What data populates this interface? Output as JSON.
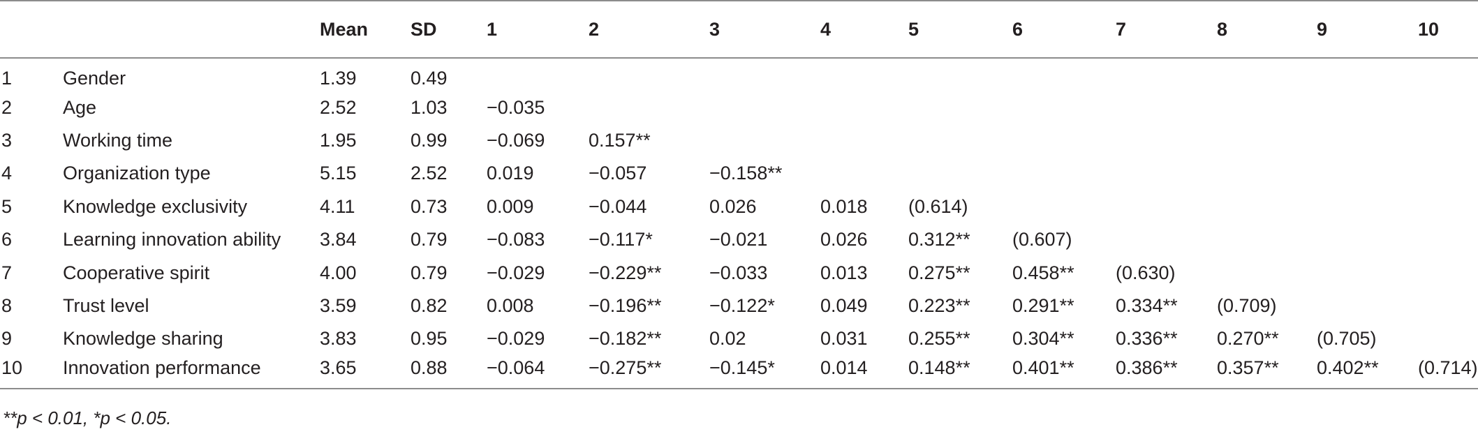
{
  "table": {
    "headers": [
      "",
      "",
      "Mean",
      "SD",
      "1",
      "2",
      "3",
      "4",
      "5",
      "6",
      "7",
      "8",
      "9",
      "10"
    ],
    "rows": [
      [
        "1",
        "Gender",
        "1.39",
        "0.49",
        "",
        "",
        "",
        "",
        "",
        "",
        "",
        "",
        "",
        ""
      ],
      [
        "2",
        "Age",
        "2.52",
        "1.03",
        "−0.035",
        "",
        "",
        "",
        "",
        "",
        "",
        "",
        "",
        ""
      ],
      [
        "3",
        "Working time",
        "1.95",
        "0.99",
        "−0.069",
        "0.157**",
        "",
        "",
        "",
        "",
        "",
        "",
        "",
        ""
      ],
      [
        "4",
        "Organization type",
        "5.15",
        "2.52",
        "0.019",
        "−0.057",
        "−0.158**",
        "",
        "",
        "",
        "",
        "",
        "",
        ""
      ],
      [
        "5",
        "Knowledge exclusivity",
        "4.11",
        "0.73",
        "0.009",
        "−0.044",
        "0.026",
        "0.018",
        "(0.614)",
        "",
        "",
        "",
        "",
        ""
      ],
      [
        "6",
        "Learning innovation ability",
        "3.84",
        "0.79",
        "−0.083",
        "−0.117*",
        "−0.021",
        "0.026",
        "0.312**",
        "(0.607)",
        "",
        "",
        "",
        ""
      ],
      [
        "7",
        "Cooperative spirit",
        "4.00",
        "0.79",
        "−0.029",
        "−0.229**",
        "−0.033",
        "0.013",
        "0.275**",
        "0.458**",
        "(0.630)",
        "",
        "",
        ""
      ],
      [
        "8",
        "Trust level",
        "3.59",
        "0.82",
        "0.008",
        "−0.196**",
        "−0.122*",
        "0.049",
        "0.223**",
        "0.291**",
        "0.334**",
        "(0.709)",
        "",
        ""
      ],
      [
        "9",
        "Knowledge sharing",
        "3.83",
        "0.95",
        "−0.029",
        "−0.182**",
        "0.02",
        "0.031",
        "0.255**",
        "0.304**",
        "0.336**",
        "0.270**",
        "(0.705)",
        ""
      ],
      [
        "10",
        "Innovation performance",
        "3.65",
        "0.88",
        "−0.064",
        "−0.275**",
        "−0.145*",
        "0.014",
        "0.148**",
        "0.401**",
        "0.386**",
        "0.357**",
        "0.402**",
        "(0.714)"
      ]
    ]
  },
  "note": "**p < 0.01, *p < 0.05."
}
